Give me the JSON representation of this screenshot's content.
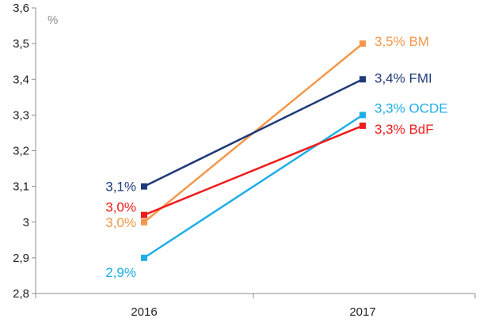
{
  "chart_data": {
    "type": "line",
    "unit_label": "%",
    "x": [
      "2016",
      "2017"
    ],
    "ylim": [
      2.8,
      3.6
    ],
    "y_ticks": [
      "2,8",
      "2,9",
      "3",
      "3,1",
      "3,2",
      "3,3",
      "3,4",
      "3,5",
      "3,6"
    ],
    "grid": false,
    "series": [
      {
        "values": [
          3.0,
          3.5
        ],
        "color": "#F4974A",
        "labels": [
          "3,0%",
          "3,5% BM"
        ]
      },
      {
        "values": [
          3.1,
          3.4
        ],
        "color": "#1F3A7A",
        "labels": [
          "3,1%",
          "3,4% FMI"
        ]
      },
      {
        "values": [
          2.9,
          3.3
        ],
        "color": "#1EAEE8",
        "labels": [
          "2,9%",
          "3,3% OCDE"
        ]
      },
      {
        "values": [
          3.02,
          3.27
        ],
        "color": "#EE1C1C",
        "labels": [
          "3,0%",
          "3,3% BdF"
        ]
      }
    ]
  }
}
